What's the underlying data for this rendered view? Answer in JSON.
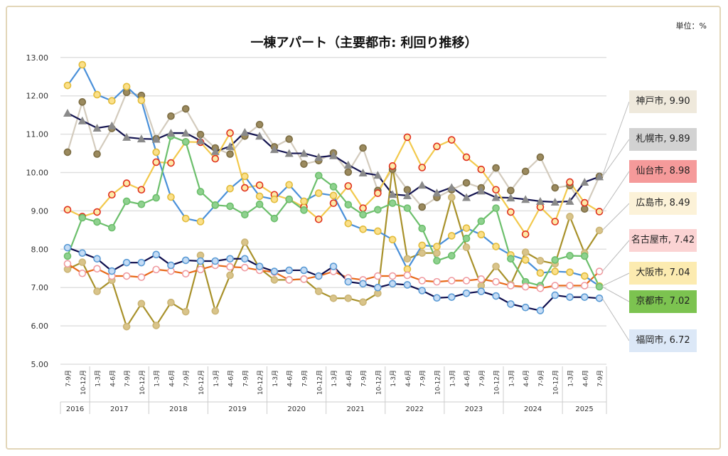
{
  "unit": "単位：%",
  "chart_data": {
    "type": "line",
    "title": "一棟アパート（主要都市: 利回り推移）",
    "ylim": [
      5,
      13
    ],
    "yticks": [
      "5.00",
      "6.00",
      "7.00",
      "8.00",
      "9.00",
      "10.00",
      "11.00",
      "12.00",
      "13.00"
    ],
    "grid": true,
    "legend": "right",
    "quarters": [
      "7-9月",
      "10-12月",
      "1-3月",
      "4-6月",
      "7-9月",
      "10-12月",
      "1-3月",
      "4-6月",
      "7-9月",
      "10-12月",
      "1-3月",
      "4-6月",
      "7-9月",
      "10-12月",
      "1-3月",
      "4-6月",
      "7-9月",
      "10-12月",
      "1-3月",
      "4-6月",
      "7-9月",
      "10-12月",
      "1-3月",
      "4-6月",
      "7-9月",
      "10-12月",
      "1-3月",
      "4-6月",
      "7-9月",
      "10-12月",
      "1-3月",
      "4-6月",
      "7-9月",
      "10-12月",
      "1-3月",
      "4-6月",
      "7-9月"
    ],
    "years": [
      {
        "label": "2016",
        "span": 2
      },
      {
        "label": "2017",
        "span": 4
      },
      {
        "label": "2018",
        "span": 4
      },
      {
        "label": "2019",
        "span": 4
      },
      {
        "label": "2020",
        "span": 4
      },
      {
        "label": "2021",
        "span": 4
      },
      {
        "label": "2022",
        "span": 4
      },
      {
        "label": "2023",
        "span": 4
      },
      {
        "label": "2024",
        "span": 4
      },
      {
        "label": "2025",
        "span": 3
      }
    ],
    "series": [
      {
        "name": "神戸市",
        "last_label": "神戸市, 9.90",
        "line": "#d3cbbd",
        "marker": "#9b8a5e",
        "stroke": "#7d6e45",
        "shape": "circle",
        "box": "#efe9dc",
        "values": [
          10.53,
          11.84,
          10.48,
          11.15,
          12.09,
          12.01,
          10.88,
          11.47,
          11.66,
          10.99,
          10.64,
          10.48,
          10.95,
          11.25,
          10.67,
          10.87,
          10.22,
          10.31,
          10.51,
          10.01,
          10.64,
          9.53,
          10.08,
          9.55,
          9.1,
          9.35,
          9.55,
          9.73,
          9.6,
          10.12,
          9.53,
          10.03,
          10.4,
          9.6,
          9.66,
          9.05,
          9.9
        ]
      },
      {
        "name": "札幌市",
        "last_label": "札幌市, 9.89",
        "line": "#141450",
        "marker": "#8a8a8a",
        "stroke": "#8a8a8a",
        "shape": "triangle",
        "box": "#d2d2d2",
        "values": [
          11.55,
          11.35,
          11.16,
          11.22,
          10.92,
          10.88,
          10.87,
          11.03,
          11.03,
          10.83,
          10.55,
          10.68,
          11.05,
          10.95,
          10.6,
          10.5,
          10.5,
          10.4,
          10.44,
          10.2,
          9.99,
          9.93,
          9.43,
          9.4,
          9.67,
          9.47,
          9.61,
          9.35,
          9.52,
          9.35,
          9.34,
          9.3,
          9.25,
          9.23,
          9.25,
          9.75,
          9.89
        ]
      },
      {
        "name": "仙台市",
        "last_label": "仙台市, 8.98",
        "line": "#f2c94c",
        "marker": "#fde9a8",
        "stroke": "#e0301e",
        "shape": "circle",
        "box": "#f59a9a",
        "values": [
          9.03,
          8.85,
          8.97,
          9.42,
          9.72,
          9.55,
          10.27,
          10.25,
          10.8,
          10.79,
          10.36,
          11.03,
          9.6,
          9.67,
          9.42,
          9.3,
          9.1,
          8.78,
          9.2,
          9.65,
          9.07,
          9.46,
          10.17,
          10.92,
          10.13,
          10.68,
          10.85,
          10.4,
          10.08,
          9.55,
          8.97,
          8.39,
          9.1,
          8.72,
          9.75,
          9.21,
          8.98
        ]
      },
      {
        "name": "広島市",
        "last_label": "広島市, 8.49",
        "line": "#a8912a",
        "marker": "#d9c48a",
        "stroke": "#cbb577",
        "shape": "circle",
        "box": "#fcf2d8",
        "values": [
          7.48,
          7.66,
          6.9,
          7.19,
          5.98,
          6.58,
          6.01,
          6.61,
          6.37,
          7.84,
          6.39,
          7.32,
          8.18,
          7.5,
          7.2,
          7.2,
          7.22,
          6.9,
          6.72,
          6.72,
          6.62,
          6.85,
          10.15,
          7.75,
          7.9,
          7.9,
          9.35,
          8.05,
          7.05,
          7.55,
          7.08,
          7.92,
          7.7,
          7.62,
          8.85,
          7.9,
          8.49
        ]
      },
      {
        "name": "名古屋市",
        "last_label": "名古屋市, 7.42",
        "line": "#e86a1a",
        "marker": "#ffffff",
        "stroke": "#f09aa0",
        "shape": "circle",
        "box": "#fbd3d3",
        "values": [
          7.62,
          7.37,
          7.49,
          7.3,
          7.3,
          7.27,
          7.47,
          7.43,
          7.36,
          7.47,
          7.58,
          7.54,
          7.52,
          7.45,
          7.4,
          7.2,
          7.22,
          7.3,
          7.42,
          7.25,
          7.2,
          7.3,
          7.3,
          7.32,
          7.18,
          7.15,
          7.18,
          7.18,
          7.22,
          7.15,
          7.05,
          7.02,
          6.98,
          7.05,
          7.05,
          7.05,
          7.42
        ]
      },
      {
        "name": "大阪市",
        "last_label": "大阪市, 7.04",
        "line": "#4a90d9",
        "marker": "#fbe08a",
        "stroke": "#e2bc3c",
        "shape": "circle",
        "box": "#fcebb0",
        "values": [
          12.27,
          12.81,
          12.03,
          11.87,
          12.24,
          11.88,
          10.53,
          9.36,
          8.8,
          8.72,
          9.15,
          9.58,
          9.9,
          9.38,
          9.3,
          9.68,
          9.25,
          9.46,
          9.4,
          8.67,
          8.52,
          8.47,
          8.25,
          7.48,
          8.1,
          8.07,
          8.35,
          8.55,
          8.38,
          8.07,
          7.85,
          7.72,
          7.38,
          7.42,
          7.4,
          7.3,
          7.04
        ]
      },
      {
        "name": "京都市",
        "last_label": "京都市, 7.02",
        "line": "#6cbf6c",
        "marker": "#8fd18f",
        "stroke": "#6cbf6c",
        "shape": "circle",
        "box": "#7cc350",
        "values": [
          7.82,
          8.82,
          8.71,
          8.56,
          9.25,
          9.17,
          9.34,
          10.95,
          10.8,
          9.5,
          9.15,
          9.12,
          8.9,
          9.17,
          8.8,
          9.3,
          9.02,
          9.92,
          9.63,
          9.16,
          8.9,
          9.03,
          9.2,
          9.07,
          8.54,
          7.7,
          7.83,
          8.28,
          8.73,
          9.07,
          7.75,
          7.15,
          7.05,
          7.72,
          7.83,
          7.82,
          7.02
        ]
      },
      {
        "name": "福岡市",
        "last_label": "福岡市, 6.72",
        "line": "#0d0d4d",
        "marker": "#c5dcf5",
        "stroke": "#5b9bd5",
        "shape": "circle",
        "box": "#dce8f7",
        "values": [
          8.04,
          7.9,
          7.75,
          7.43,
          7.65,
          7.65,
          7.86,
          7.58,
          7.71,
          7.69,
          7.69,
          7.75,
          7.75,
          7.55,
          7.42,
          7.45,
          7.45,
          7.3,
          7.55,
          7.15,
          7.1,
          7.0,
          7.1,
          7.07,
          6.92,
          6.73,
          6.75,
          6.85,
          6.9,
          6.78,
          6.57,
          6.48,
          6.4,
          6.8,
          6.75,
          6.75,
          6.72
        ]
      }
    ]
  }
}
